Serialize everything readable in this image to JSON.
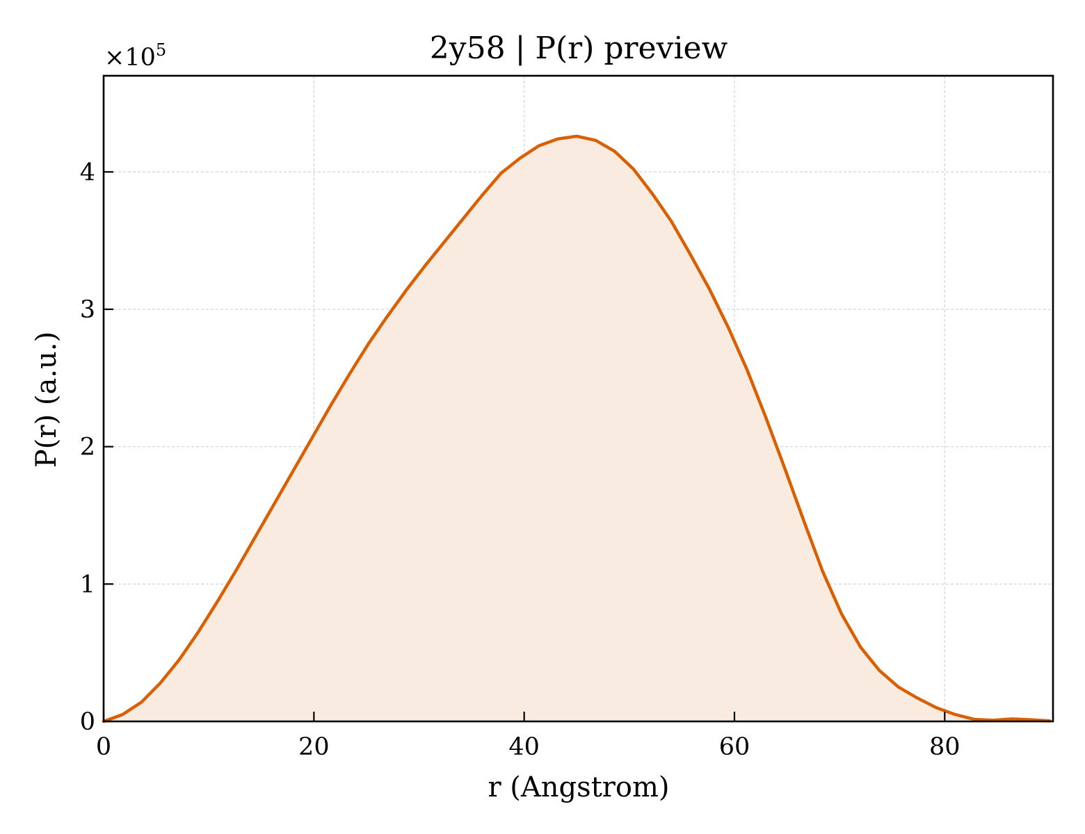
{
  "chart_data": {
    "type": "area",
    "title": "2y58 | P(r) preview",
    "xlabel": "r (Angstrom)",
    "ylabel": "P(r) (a.u.)",
    "y_offset_label": "×10",
    "y_offset_exponent": "5",
    "y_scale": 100000,
    "xlim": [
      0,
      90.3
    ],
    "ylim": [
      0,
      470000
    ],
    "xticks": [
      0,
      20,
      40,
      60,
      80
    ],
    "xtick_labels": [
      "0",
      "20",
      "40",
      "60",
      "80"
    ],
    "yticks": [
      0,
      100000,
      200000,
      300000,
      400000
    ],
    "ytick_labels": [
      "0",
      "1",
      "2",
      "3",
      "4"
    ],
    "grid": true,
    "line_color": "#d95f02",
    "fill_color": "#f9ebe0",
    "series": [
      {
        "x": [
          0,
          1.8,
          3.6,
          5.4,
          7.2,
          9.0,
          10.8,
          12.6,
          14.4,
          16.2,
          18.0,
          19.8,
          21.6,
          23.4,
          25.2,
          27.0,
          28.8,
          30.6,
          32.4,
          34.2,
          36.0,
          37.8,
          39.6,
          41.4,
          43.2,
          45.0,
          46.8,
          48.6,
          50.4,
          52.2,
          54.0,
          55.8,
          57.6,
          59.4,
          61.2,
          63.0,
          64.8,
          66.6,
          68.4,
          70.2,
          72.0,
          73.8,
          75.6,
          77.4,
          79.2,
          81.0,
          82.8,
          84.6,
          86.4,
          88.2,
          90.0
        ],
        "y": [
          0,
          5000,
          14000,
          28000,
          45000,
          65000,
          87000,
          110000,
          134000,
          158000,
          182000,
          206000,
          230000,
          253000,
          275000,
          295000,
          314000,
          332000,
          349000,
          366000,
          383000,
          399000,
          410000,
          419000,
          424000,
          426000,
          423000,
          415000,
          402000,
          384000,
          364000,
          340000,
          315000,
          287000,
          256000,
          221000,
          184000,
          146000,
          109000,
          78000,
          54000,
          37000,
          25000,
          17000,
          10000,
          5000,
          1500,
          800,
          1800,
          1200,
          400
        ]
      }
    ]
  }
}
